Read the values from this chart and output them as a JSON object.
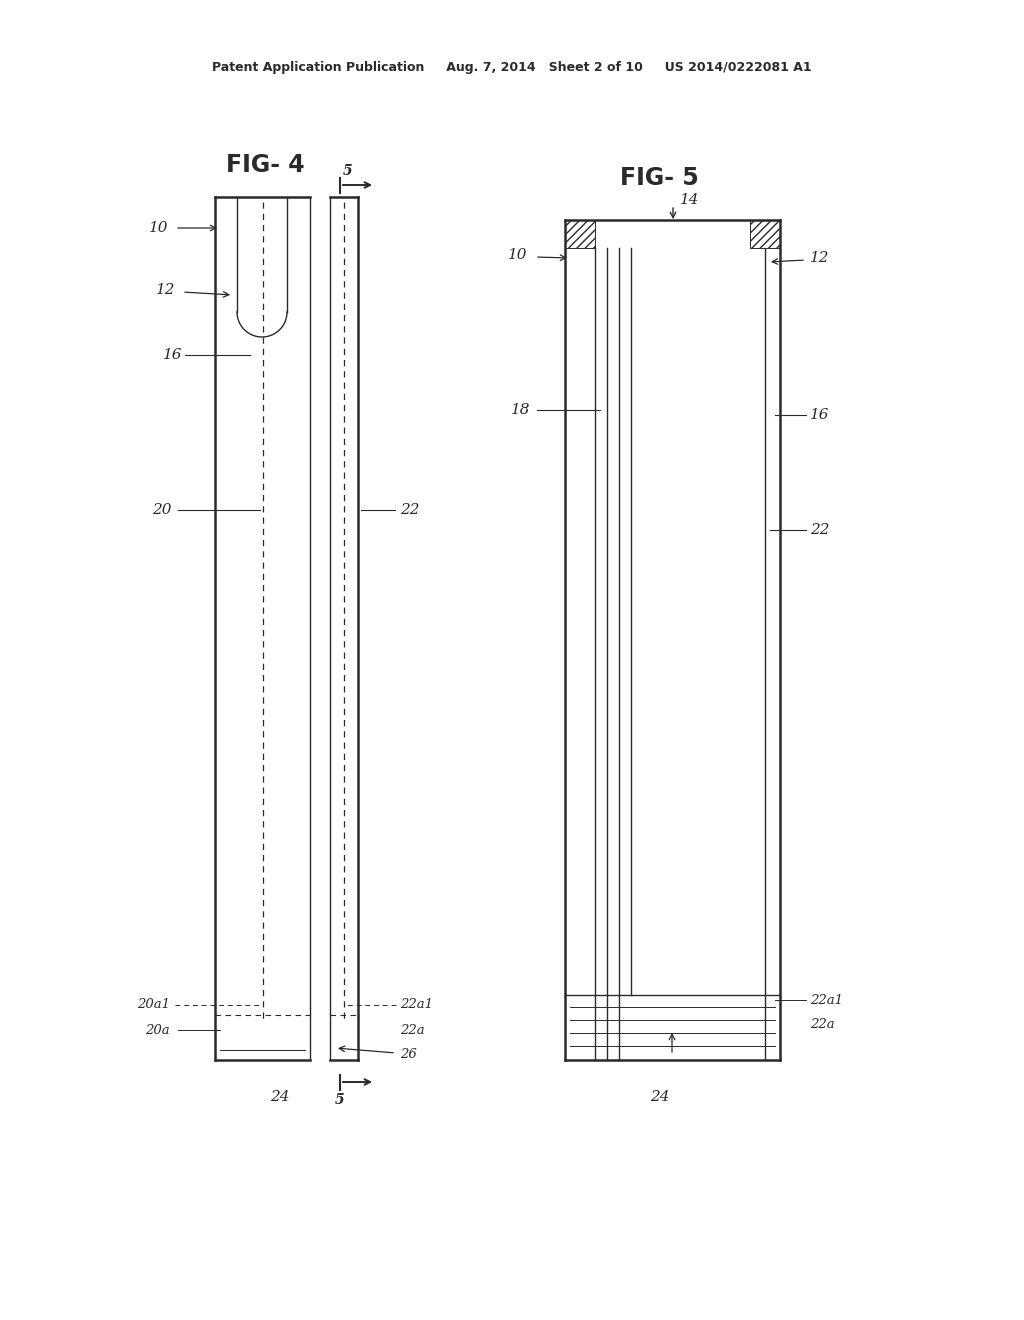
{
  "bg_color": "#ffffff",
  "line_color": "#2a2a2a",
  "header_text": "Patent Application Publication     Aug. 7, 2014   Sheet 2 of 10     US 2014/0222081 A1",
  "fig4_title": "FIG- 4",
  "fig5_title": "FIG- 5"
}
